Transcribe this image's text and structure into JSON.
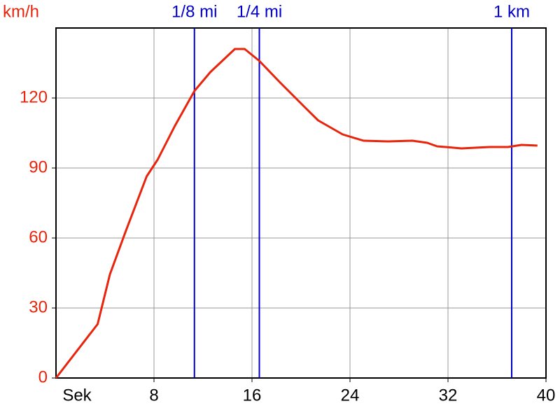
{
  "chart_data": {
    "type": "line",
    "y_label": "km/h",
    "x_label": "Sek",
    "x": [
      0,
      3.4,
      4.4,
      5.7,
      7.4,
      8.3,
      9.7,
      11.3,
      12.6,
      14.6,
      15.4,
      16.6,
      18.3,
      20.3,
      21.4,
      23.4,
      25.1,
      27.1,
      29.1,
      30.3,
      31.1,
      33.1,
      35.4,
      36.9,
      38,
      39.3
    ],
    "series": [
      {
        "name": "km/h",
        "color": "#e8240c",
        "values": [
          0,
          23.1,
          44.4,
          63,
          86.4,
          93.6,
          108,
          123,
          131.1,
          141,
          141,
          135.9,
          126.6,
          116.1,
          110.4,
          104.4,
          101.7,
          101.4,
          101.7,
          100.8,
          99.3,
          98.4,
          99,
          99,
          99.9,
          99.6
        ]
      }
    ],
    "xlim": [
      0,
      40
    ],
    "xticks": [
      8,
      16,
      24,
      32,
      40
    ],
    "ylim": [
      0,
      150
    ],
    "yticks": [
      0,
      30,
      60,
      90,
      120
    ],
    "grid": true,
    "tick_color_y": "#e8240c",
    "marker_color": "#0000cc",
    "markers": [
      {
        "label": "1/8 mi",
        "x": 11.3
      },
      {
        "label": "1/4 mi",
        "x": 16.6
      },
      {
        "label": "1 km",
        "x": 37.2
      }
    ]
  }
}
